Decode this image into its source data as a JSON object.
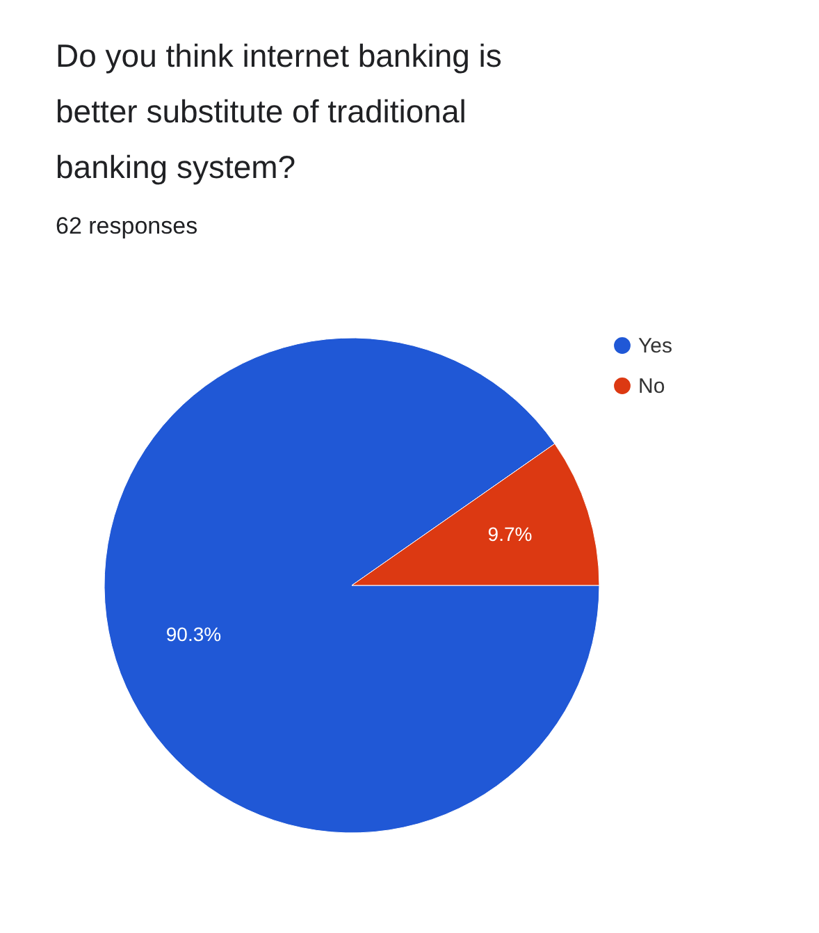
{
  "chart_data": {
    "type": "pie",
    "title": "Do you think internet banking is better substitute of traditional banking system?",
    "subtitle": "62 responses",
    "categories": [
      "Yes",
      "No"
    ],
    "values": [
      90.3,
      9.7
    ],
    "colors": [
      "#2058d6",
      "#dc3912"
    ],
    "value_labels": [
      "90.3%",
      "9.7%"
    ],
    "legend": "top right"
  }
}
